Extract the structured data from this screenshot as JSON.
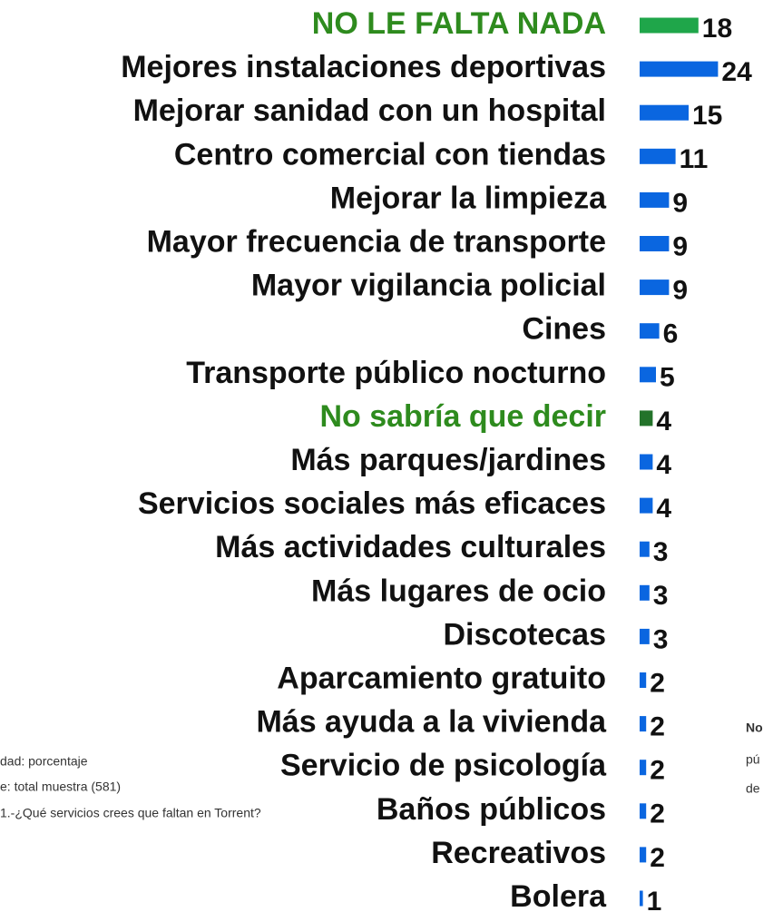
{
  "chart_data": {
    "type": "barh",
    "categories": [
      "NO LE FALTA NADA",
      "Mejores instalaciones deportivas",
      "Mejorar sanidad con un hospital",
      "Centro comercial con tiendas",
      "Mejorar la limpieza",
      "Mayor frecuencia de transporte",
      "Mayor vigilancia policial",
      "Cines",
      "Transporte público nocturno",
      "No sabría que decir",
      "Más parques/jardines",
      "Servicios sociales más eficaces",
      "Más actividades culturales",
      "Más lugares de ocio",
      "Discotecas",
      "Aparcamiento gratuito",
      "Más ayuda a la vivienda",
      "Servicio de psicología",
      "Baños públicos",
      "Recreativos",
      "Bolera"
    ],
    "values": [
      18,
      24,
      15,
      11,
      9,
      9,
      9,
      6,
      5,
      4,
      4,
      4,
      3,
      3,
      3,
      2,
      2,
      2,
      2,
      2,
      1
    ],
    "colors": [
      "#1fa64a",
      "#0a66e0",
      "#0a66e0",
      "#0a66e0",
      "#0a66e0",
      "#0a66e0",
      "#0a66e0",
      "#0a66e0",
      "#0a66e0",
      "#23732a",
      "#0a66e0",
      "#0a66e0",
      "#0a66e0",
      "#0a66e0",
      "#0a66e0",
      "#0a66e0",
      "#0a66e0",
      "#0a66e0",
      "#0a66e0",
      "#0a66e0",
      "#0a66e0"
    ],
    "label_colors": [
      "#2e8b1e",
      "#111",
      "#111",
      "#111",
      "#111",
      "#111",
      "#111",
      "#111",
      "#111",
      "#2e8b1e",
      "#111",
      "#111",
      "#111",
      "#111",
      "#111",
      "#111",
      "#111",
      "#111",
      "#111",
      "#111",
      "#111"
    ]
  },
  "notes_left": [
    "dad: porcentaje",
    "e: total muestra (581)",
    "1.-¿Qué servicios crees que faltan en Torrent?"
  ],
  "notes_right": [
    "No",
    "pú",
    "de"
  ]
}
